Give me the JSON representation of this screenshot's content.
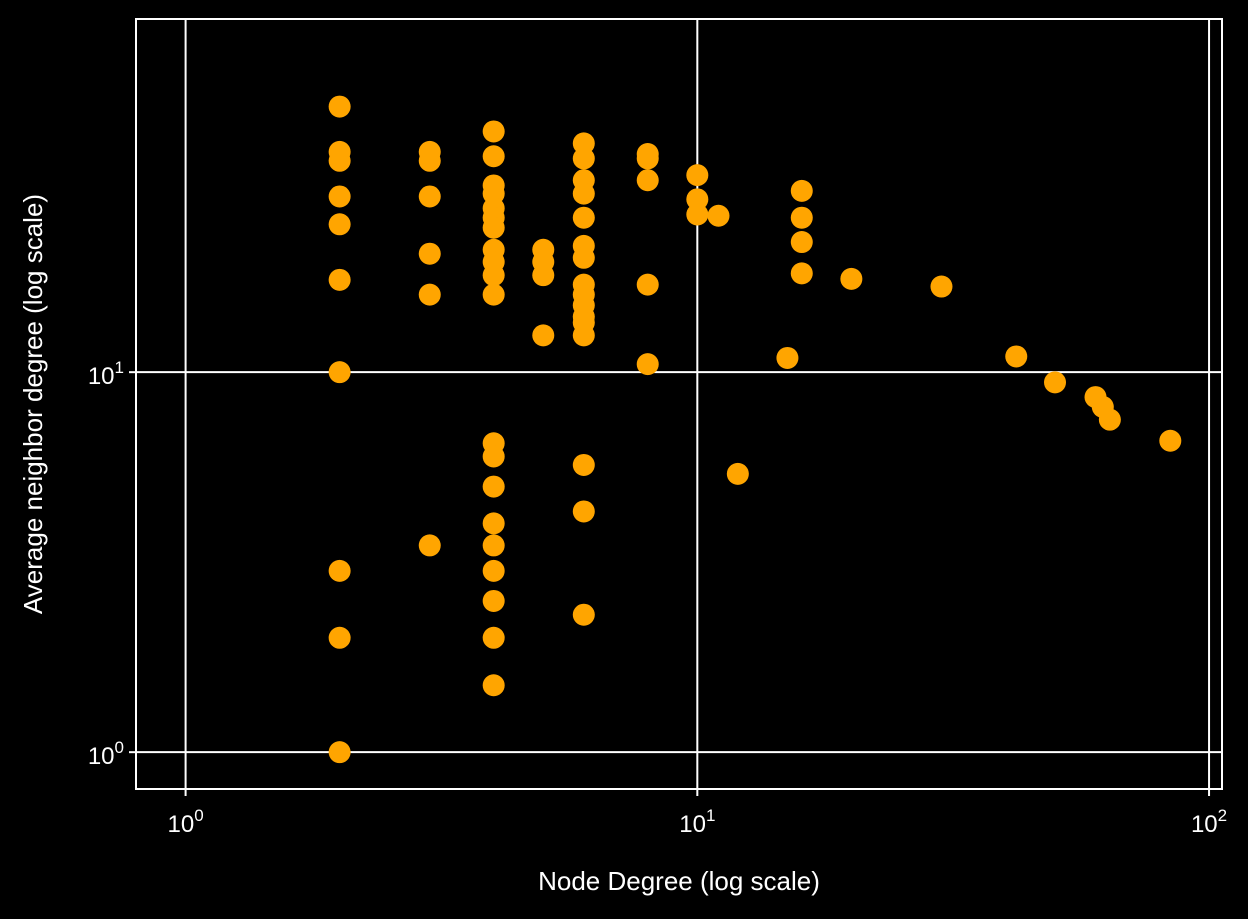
{
  "chart_data": {
    "type": "scatter",
    "title": "",
    "xlabel": "Node Degree (log scale)",
    "ylabel": "Average neighbor degree (log scale)",
    "xscale": "log",
    "yscale": "log",
    "xlim": [
      0.8,
      106
    ],
    "ylim": [
      0.8,
      85
    ],
    "grid": true,
    "legend": "none",
    "x_ticks": [
      {
        "base": "10",
        "exp": "0",
        "value": 1
      },
      {
        "base": "10",
        "exp": "1",
        "value": 10
      },
      {
        "base": "10",
        "exp": "2",
        "value": 100
      }
    ],
    "y_ticks": [
      {
        "base": "10",
        "exp": "0",
        "value": 1
      },
      {
        "base": "10",
        "exp": "1",
        "value": 10
      }
    ],
    "colors": {
      "background": "#000000",
      "points": "#ffa500",
      "grid": "#ffffff",
      "frame": "#ffffff",
      "text": "#ffffff"
    },
    "points": [
      {
        "x": 2,
        "y": 50
      },
      {
        "x": 2,
        "y": 38
      },
      {
        "x": 2,
        "y": 36
      },
      {
        "x": 2,
        "y": 29
      },
      {
        "x": 2,
        "y": 24.5
      },
      {
        "x": 2,
        "y": 17.5
      },
      {
        "x": 2,
        "y": 10
      },
      {
        "x": 2,
        "y": 3
      },
      {
        "x": 2,
        "y": 2
      },
      {
        "x": 2,
        "y": 1
      },
      {
        "x": 3,
        "y": 38
      },
      {
        "x": 3,
        "y": 36
      },
      {
        "x": 3,
        "y": 29
      },
      {
        "x": 3,
        "y": 20.5
      },
      {
        "x": 3,
        "y": 16
      },
      {
        "x": 3,
        "y": 3.5
      },
      {
        "x": 4,
        "y": 43
      },
      {
        "x": 4,
        "y": 37
      },
      {
        "x": 4,
        "y": 31
      },
      {
        "x": 4,
        "y": 29.5
      },
      {
        "x": 4,
        "y": 27
      },
      {
        "x": 4,
        "y": 25.5
      },
      {
        "x": 4,
        "y": 24
      },
      {
        "x": 4,
        "y": 21
      },
      {
        "x": 4,
        "y": 19.5
      },
      {
        "x": 4,
        "y": 18
      },
      {
        "x": 4,
        "y": 16
      },
      {
        "x": 4,
        "y": 6.5
      },
      {
        "x": 4,
        "y": 6
      },
      {
        "x": 4,
        "y": 5
      },
      {
        "x": 4,
        "y": 4
      },
      {
        "x": 4,
        "y": 3.5
      },
      {
        "x": 4,
        "y": 3
      },
      {
        "x": 4,
        "y": 2.5
      },
      {
        "x": 4,
        "y": 2
      },
      {
        "x": 4,
        "y": 1.5
      },
      {
        "x": 5,
        "y": 21
      },
      {
        "x": 5,
        "y": 19.5
      },
      {
        "x": 5,
        "y": 18
      },
      {
        "x": 5,
        "y": 12.5
      },
      {
        "x": 6,
        "y": 40
      },
      {
        "x": 6,
        "y": 36.5
      },
      {
        "x": 6,
        "y": 32
      },
      {
        "x": 6,
        "y": 29.5
      },
      {
        "x": 6,
        "y": 25.5
      },
      {
        "x": 6,
        "y": 21.5
      },
      {
        "x": 6,
        "y": 20
      },
      {
        "x": 6,
        "y": 17
      },
      {
        "x": 6,
        "y": 16
      },
      {
        "x": 6,
        "y": 15
      },
      {
        "x": 6,
        "y": 14
      },
      {
        "x": 6,
        "y": 13.5
      },
      {
        "x": 6,
        "y": 12.5
      },
      {
        "x": 6,
        "y": 5.7
      },
      {
        "x": 6,
        "y": 4.3
      },
      {
        "x": 6,
        "y": 2.3
      },
      {
        "x": 8,
        "y": 37.5
      },
      {
        "x": 8,
        "y": 36.5
      },
      {
        "x": 8,
        "y": 32
      },
      {
        "x": 8,
        "y": 17
      },
      {
        "x": 8,
        "y": 10.5
      },
      {
        "x": 10,
        "y": 33
      },
      {
        "x": 10,
        "y": 28.5
      },
      {
        "x": 10,
        "y": 26
      },
      {
        "x": 11,
        "y": 25.8
      },
      {
        "x": 12,
        "y": 5.4
      },
      {
        "x": 15,
        "y": 10.9
      },
      {
        "x": 16,
        "y": 30
      },
      {
        "x": 16,
        "y": 25.5
      },
      {
        "x": 16,
        "y": 22
      },
      {
        "x": 16,
        "y": 18.2
      },
      {
        "x": 20,
        "y": 17.6
      },
      {
        "x": 30,
        "y": 16.8
      },
      {
        "x": 42,
        "y": 11
      },
      {
        "x": 50,
        "y": 9.4
      },
      {
        "x": 60,
        "y": 8.6
      },
      {
        "x": 62,
        "y": 8.1
      },
      {
        "x": 64,
        "y": 7.5
      },
      {
        "x": 84,
        "y": 6.6
      }
    ]
  }
}
